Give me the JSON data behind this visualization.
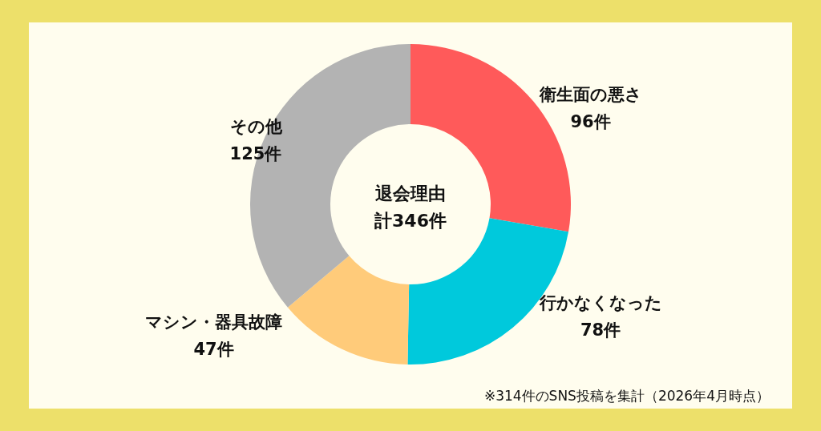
{
  "chart_data": {
    "type": "donut",
    "title": "退会理由",
    "subtitle": "計346件",
    "categories": [
      "衛生面の悪さ",
      "行かなくなった",
      "マシン・器具故障",
      "その他"
    ],
    "values": [
      96,
      78,
      47,
      125
    ],
    "value_labels": [
      "96件",
      "78件",
      "47件",
      "125件"
    ],
    "colors": [
      "#ff5a5a",
      "#00c9dc",
      "#ffcb7a",
      "#b3b3b3"
    ],
    "annotations": [
      "※314件のSNS投稿を集計（2026年4月時点）"
    ]
  }
}
